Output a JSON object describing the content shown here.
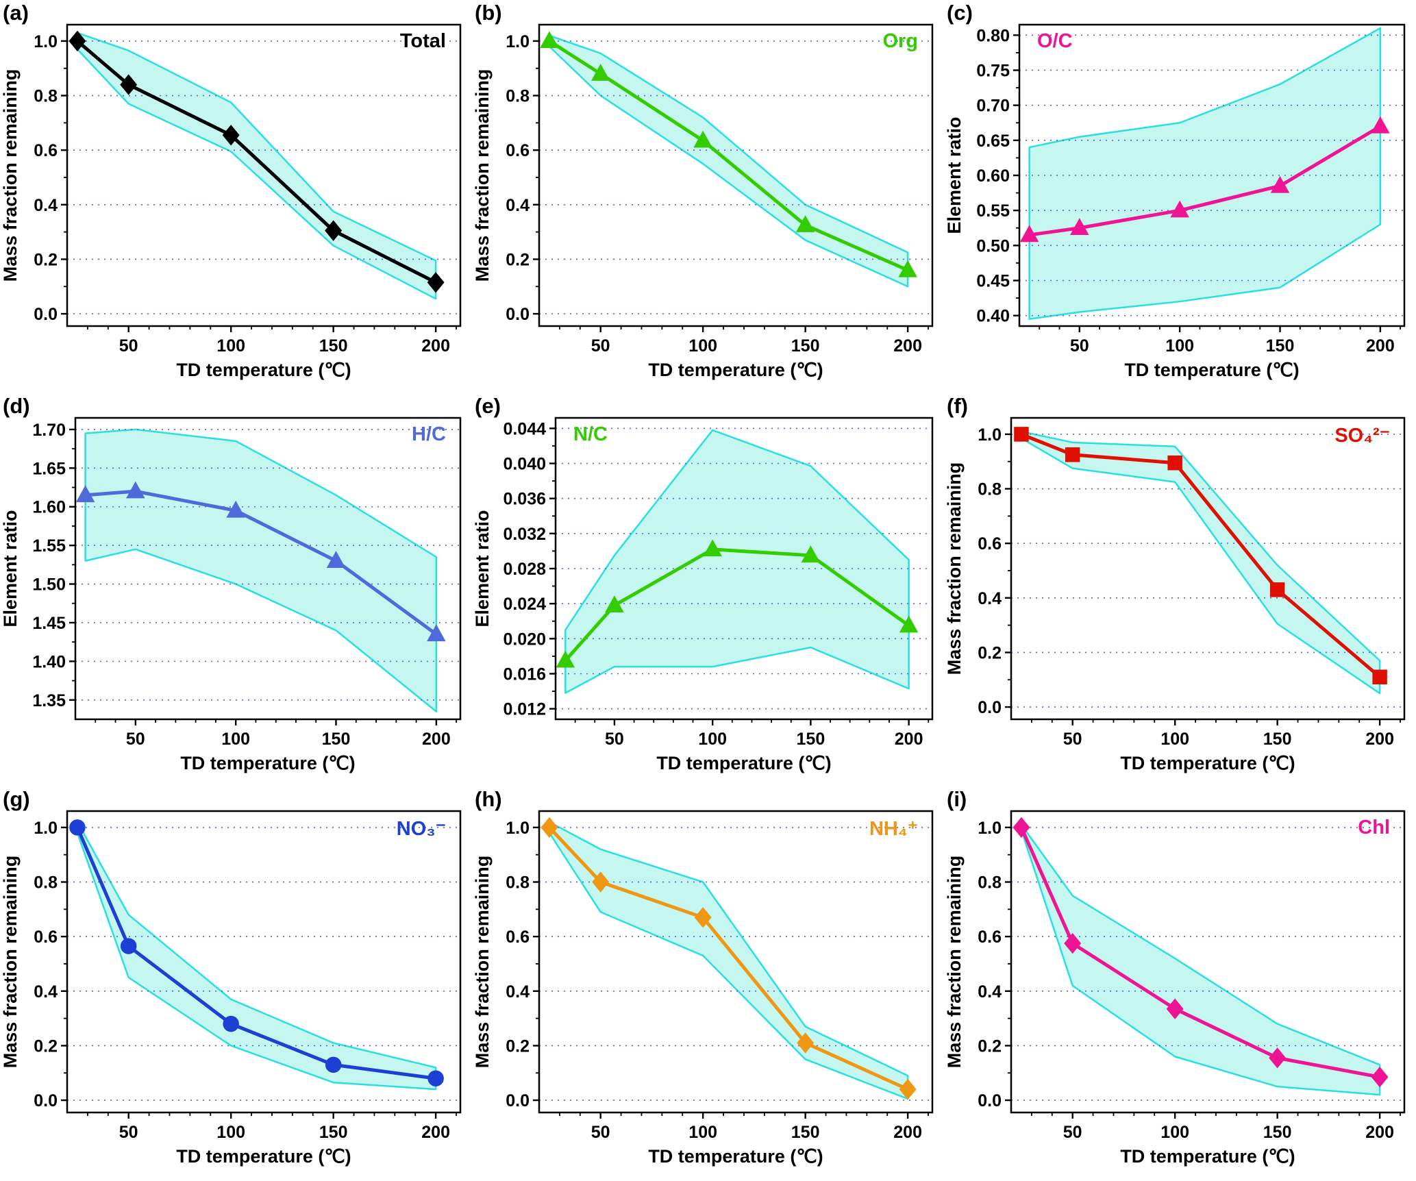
{
  "page": {
    "background": "#ffffff"
  },
  "style": {
    "band_fill": "#c6f6f0",
    "band_stroke": "#29dfe0",
    "grid_color": "#5f5fd0",
    "axis_color": "#000000"
  },
  "chart_data": [
    {
      "type": "line",
      "panel": "(a)",
      "legend": "Total",
      "legend_color": "#000000",
      "legend_side": "right",
      "marker": "diamond",
      "color": "#000000",
      "xlabel": "TD  temperature (℃)",
      "ylabel": "Mass fraction remaining",
      "x": [
        25,
        50,
        100,
        150,
        200
      ],
      "values": [
        1.0,
        0.84,
        0.655,
        0.305,
        0.115
      ],
      "band_upper": [
        1.03,
        0.965,
        0.775,
        0.375,
        0.195
      ],
      "band_lower": [
        0.97,
        0.77,
        0.595,
        0.25,
        0.055
      ],
      "xlim": [
        20,
        212
      ],
      "ylim": [
        -0.045,
        1.06
      ],
      "xticks": [
        50,
        100,
        150,
        200
      ],
      "xtick_labels": [
        "50",
        "100",
        "150",
        "200"
      ],
      "yticks": [
        0.0,
        0.2,
        0.4,
        0.6,
        0.8,
        1.0
      ],
      "ytick_labels": [
        "0.0",
        "0.2",
        "0.4",
        "0.6",
        "0.8",
        "1.0"
      ],
      "grid": true,
      "legend_position": "top-right"
    },
    {
      "type": "line",
      "panel": "(b)",
      "legend": "Org",
      "legend_color": "#33cc00",
      "legend_side": "right",
      "marker": "triangle",
      "color": "#33cc00",
      "xlabel": "TD  temperature (℃)",
      "ylabel": "Mass fraction remaining",
      "x": [
        25,
        50,
        100,
        150,
        200
      ],
      "values": [
        1.0,
        0.88,
        0.635,
        0.325,
        0.16
      ],
      "band_upper": [
        1.02,
        0.955,
        0.72,
        0.4,
        0.225
      ],
      "band_lower": [
        0.98,
        0.8,
        0.55,
        0.27,
        0.1
      ],
      "xlim": [
        20,
        212
      ],
      "ylim": [
        -0.045,
        1.06
      ],
      "xticks": [
        50,
        100,
        150,
        200
      ],
      "xtick_labels": [
        "50",
        "100",
        "150",
        "200"
      ],
      "yticks": [
        0.0,
        0.2,
        0.4,
        0.6,
        0.8,
        1.0
      ],
      "ytick_labels": [
        "0.0",
        "0.2",
        "0.4",
        "0.6",
        "0.8",
        "1.0"
      ],
      "grid": true,
      "legend_position": "top-right"
    },
    {
      "type": "line",
      "panel": "(c)",
      "legend": "O/C",
      "legend_color": "#ee1493",
      "legend_side": "left",
      "marker": "triangle",
      "color": "#ee1493",
      "xlabel": "TD  temperature (℃)",
      "ylabel": "Element ratio",
      "x": [
        25,
        50,
        100,
        150,
        200
      ],
      "values": [
        0.515,
        0.525,
        0.55,
        0.585,
        0.67
      ],
      "band_upper": [
        0.64,
        0.655,
        0.675,
        0.73,
        0.81
      ],
      "band_lower": [
        0.395,
        0.405,
        0.42,
        0.44,
        0.53
      ],
      "xlim": [
        20,
        212
      ],
      "ylim": [
        0.385,
        0.815
      ],
      "xticks": [
        50,
        100,
        150,
        200
      ],
      "xtick_labels": [
        "50",
        "100",
        "150",
        "200"
      ],
      "yticks": [
        0.4,
        0.45,
        0.5,
        0.55,
        0.6,
        0.65,
        0.7,
        0.75,
        0.8
      ],
      "ytick_labels": [
        "0.40",
        "0.45",
        "0.50",
        "0.55",
        "0.60",
        "0.65",
        "0.70",
        "0.75",
        "0.80"
      ],
      "grid": true,
      "legend_position": "top-left"
    },
    {
      "type": "line",
      "panel": "(d)",
      "legend": "H/C",
      "legend_color": "#4f6bdb",
      "legend_side": "right",
      "marker": "triangle",
      "color": "#4f6bdb",
      "xlabel": "TD  temperature (℃)",
      "ylabel": "Element ratio",
      "x": [
        25,
        50,
        100,
        150,
        200
      ],
      "values": [
        1.615,
        1.62,
        1.595,
        1.53,
        1.435
      ],
      "band_upper": [
        1.695,
        1.7,
        1.685,
        1.615,
        1.535
      ],
      "band_lower": [
        1.53,
        1.545,
        1.5,
        1.44,
        1.335
      ],
      "xlim": [
        20,
        212
      ],
      "ylim": [
        1.325,
        1.715
      ],
      "xticks": [
        50,
        100,
        150,
        200
      ],
      "xtick_labels": [
        "50",
        "100",
        "150",
        "200"
      ],
      "yticks": [
        1.35,
        1.4,
        1.45,
        1.5,
        1.55,
        1.6,
        1.65,
        1.7
      ],
      "ytick_labels": [
        "1.35",
        "1.40",
        "1.45",
        "1.50",
        "1.55",
        "1.60",
        "1.65",
        "1.70"
      ],
      "grid": true,
      "legend_position": "top-right"
    },
    {
      "type": "line",
      "panel": "(e)",
      "legend": "N/C",
      "legend_color": "#33cc00",
      "legend_side": "left",
      "marker": "triangle",
      "color": "#33cc00",
      "xlabel": "TD  temperature (℃)",
      "ylabel": "Element ratio",
      "x": [
        25,
        50,
        100,
        150,
        200
      ],
      "values": [
        0.0175,
        0.0238,
        0.0302,
        0.0295,
        0.0215
      ],
      "band_upper": [
        0.021,
        0.0295,
        0.0438,
        0.0397,
        0.029
      ],
      "band_lower": [
        0.0138,
        0.0168,
        0.0168,
        0.019,
        0.0143
      ],
      "xlim": [
        20,
        212
      ],
      "ylim": [
        0.0108,
        0.0452
      ],
      "xticks": [
        50,
        100,
        150,
        200
      ],
      "xtick_labels": [
        "50",
        "100",
        "150",
        "200"
      ],
      "yticks": [
        0.012,
        0.016,
        0.02,
        0.024,
        0.028,
        0.032,
        0.036,
        0.04,
        0.044
      ],
      "ytick_labels": [
        "0.012",
        "0.016",
        "0.020",
        "0.024",
        "0.028",
        "0.032",
        "0.036",
        "0.040",
        "0.044"
      ],
      "grid": true,
      "legend_position": "top-left"
    },
    {
      "type": "line",
      "panel": "(f)",
      "legend": "SO₄²⁻",
      "legend_color": "#e01000",
      "legend_side": "right",
      "marker": "square",
      "color": "#e01000",
      "xlabel": "TD  temperature (℃)",
      "ylabel": "Mass fraction remaining",
      "x": [
        25,
        50,
        100,
        150,
        200
      ],
      "values": [
        1.0,
        0.925,
        0.895,
        0.43,
        0.11
      ],
      "band_upper": [
        1.01,
        0.97,
        0.955,
        0.52,
        0.17
      ],
      "band_lower": [
        0.985,
        0.875,
        0.825,
        0.305,
        0.05
      ],
      "xlim": [
        20,
        212
      ],
      "ylim": [
        -0.045,
        1.06
      ],
      "xticks": [
        50,
        100,
        150,
        200
      ],
      "xtick_labels": [
        "50",
        "100",
        "150",
        "200"
      ],
      "yticks": [
        0.0,
        0.2,
        0.4,
        0.6,
        0.8,
        1.0
      ],
      "ytick_labels": [
        "0.0",
        "0.2",
        "0.4",
        "0.6",
        "0.8",
        "1.0"
      ],
      "grid": true,
      "legend_position": "top-right"
    },
    {
      "type": "line",
      "panel": "(g)",
      "legend": "NO₃⁻",
      "legend_color": "#1c3fd4",
      "legend_side": "right",
      "marker": "circle",
      "color": "#1c3fd4",
      "xlabel": "TD  temperature (℃)",
      "ylabel": "Mass fraction remaining",
      "x": [
        25,
        50,
        100,
        150,
        200
      ],
      "values": [
        1.0,
        0.565,
        0.28,
        0.13,
        0.08
      ],
      "band_upper": [
        1.02,
        0.68,
        0.37,
        0.21,
        0.12
      ],
      "band_lower": [
        0.98,
        0.45,
        0.2,
        0.065,
        0.04
      ],
      "xlim": [
        20,
        212
      ],
      "ylim": [
        -0.045,
        1.06
      ],
      "xticks": [
        50,
        100,
        150,
        200
      ],
      "xtick_labels": [
        "50",
        "100",
        "150",
        "200"
      ],
      "yticks": [
        0.0,
        0.2,
        0.4,
        0.6,
        0.8,
        1.0
      ],
      "ytick_labels": [
        "0.0",
        "0.2",
        "0.4",
        "0.6",
        "0.8",
        "1.0"
      ],
      "grid": true,
      "legend_position": "top-right"
    },
    {
      "type": "line",
      "panel": "(h)",
      "legend": "NH₄⁺",
      "legend_color": "#ef9613",
      "legend_side": "right",
      "marker": "diamond",
      "color": "#ef9613",
      "xlabel": "TD  temperature (℃)",
      "ylabel": "Mass fraction remaining",
      "x": [
        25,
        50,
        100,
        150,
        200
      ],
      "values": [
        1.0,
        0.8,
        0.67,
        0.21,
        0.04
      ],
      "band_upper": [
        1.02,
        0.92,
        0.8,
        0.27,
        0.09
      ],
      "band_lower": [
        0.98,
        0.69,
        0.53,
        0.15,
        0.005
      ],
      "xlim": [
        20,
        212
      ],
      "ylim": [
        -0.045,
        1.06
      ],
      "xticks": [
        50,
        100,
        150,
        200
      ],
      "xtick_labels": [
        "50",
        "100",
        "150",
        "200"
      ],
      "yticks": [
        0.0,
        0.2,
        0.4,
        0.6,
        0.8,
        1.0
      ],
      "ytick_labels": [
        "0.0",
        "0.2",
        "0.4",
        "0.6",
        "0.8",
        "1.0"
      ],
      "grid": true,
      "legend_position": "top-right"
    },
    {
      "type": "line",
      "panel": "(i)",
      "legend": "Chl",
      "legend_color": "#ee1493",
      "legend_side": "right",
      "marker": "diamond",
      "color": "#ee1493",
      "xlabel": "TD  temperature (℃)",
      "ylabel": "Mass fraction remaining",
      "x": [
        25,
        50,
        100,
        150,
        200
      ],
      "values": [
        1.0,
        0.575,
        0.335,
        0.155,
        0.085
      ],
      "band_upper": [
        1.01,
        0.75,
        0.52,
        0.28,
        0.13
      ],
      "band_lower": [
        0.99,
        0.42,
        0.16,
        0.05,
        0.02
      ],
      "xlim": [
        20,
        212
      ],
      "ylim": [
        -0.045,
        1.06
      ],
      "xticks": [
        50,
        100,
        150,
        200
      ],
      "xtick_labels": [
        "50",
        "100",
        "150",
        "200"
      ],
      "yticks": [
        0.0,
        0.2,
        0.4,
        0.6,
        0.8,
        1.0
      ],
      "ytick_labels": [
        "0.0",
        "0.2",
        "0.4",
        "0.6",
        "0.8",
        "1.0"
      ],
      "grid": true,
      "legend_position": "top-right"
    }
  ]
}
